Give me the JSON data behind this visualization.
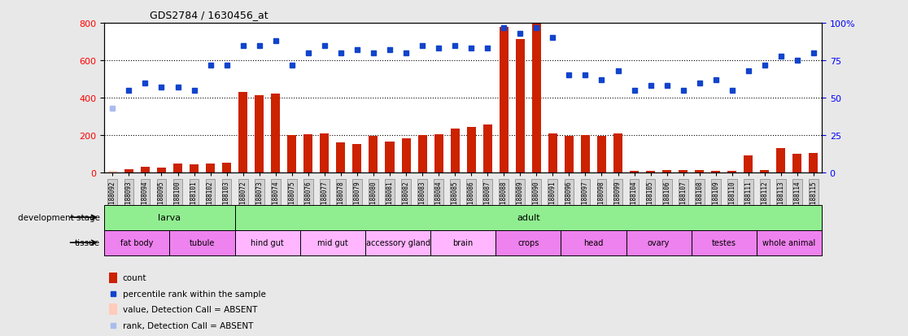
{
  "title": "GDS2784 / 1630456_at",
  "samples": [
    "GSM188092",
    "GSM188093",
    "GSM188094",
    "GSM188095",
    "GSM188100",
    "GSM188101",
    "GSM188102",
    "GSM188103",
    "GSM188072",
    "GSM188073",
    "GSM188074",
    "GSM188075",
    "GSM188076",
    "GSM188077",
    "GSM188078",
    "GSM188079",
    "GSM188080",
    "GSM188081",
    "GSM188082",
    "GSM188083",
    "GSM188084",
    "GSM188085",
    "GSM188086",
    "GSM188087",
    "GSM188088",
    "GSM188089",
    "GSM188090",
    "GSM188091",
    "GSM188096",
    "GSM188097",
    "GSM188098",
    "GSM188099",
    "GSM188104",
    "GSM188105",
    "GSM188106",
    "GSM188107",
    "GSM188108",
    "GSM188109",
    "GSM188110",
    "GSM188111",
    "GSM188112",
    "GSM188113",
    "GSM188114",
    "GSM188115"
  ],
  "counts": [
    8,
    20,
    30,
    25,
    50,
    45,
    50,
    55,
    430,
    415,
    420,
    200,
    205,
    210,
    160,
    155,
    195,
    165,
    185,
    200,
    205,
    235,
    245,
    255,
    780,
    715,
    800,
    210,
    195,
    200,
    195,
    210,
    10,
    10,
    15,
    12,
    12,
    10,
    10,
    90,
    15,
    130,
    100,
    105
  ],
  "ranks": [
    43,
    55,
    60,
    57,
    57,
    55,
    72,
    72,
    85,
    85,
    88,
    72,
    80,
    85,
    80,
    82,
    80,
    82,
    80,
    85,
    83,
    85,
    83,
    83,
    97,
    93,
    97,
    90,
    65,
    65,
    62,
    68,
    55,
    58,
    58,
    55,
    60,
    62,
    55,
    68,
    72,
    78,
    75,
    80
  ],
  "absent_count_indices": [
    0
  ],
  "absent_rank_indices": [
    0
  ],
  "ylim_left": [
    0,
    800
  ],
  "ylim_right": [
    0,
    100
  ],
  "yticks_left": [
    0,
    200,
    400,
    600,
    800
  ],
  "yticks_right": [
    0,
    25,
    50,
    75,
    100
  ],
  "dev_stage_groups": [
    {
      "label": "larva",
      "start": 0,
      "end": 8,
      "color": "#90ee90"
    },
    {
      "label": "adult",
      "start": 8,
      "end": 44,
      "color": "#90ee90"
    }
  ],
  "tissue_groups": [
    {
      "label": "fat body",
      "start": 0,
      "end": 4,
      "color": "#ee82ee"
    },
    {
      "label": "tubule",
      "start": 4,
      "end": 8,
      "color": "#ee82ee"
    },
    {
      "label": "hind gut",
      "start": 8,
      "end": 12,
      "color": "#ffb6ff"
    },
    {
      "label": "mid gut",
      "start": 12,
      "end": 16,
      "color": "#ffb6ff"
    },
    {
      "label": "accessory gland",
      "start": 16,
      "end": 20,
      "color": "#ffb6ff"
    },
    {
      "label": "brain",
      "start": 20,
      "end": 24,
      "color": "#ffb6ff"
    },
    {
      "label": "crops",
      "start": 24,
      "end": 28,
      "color": "#ee82ee"
    },
    {
      "label": "head",
      "start": 28,
      "end": 32,
      "color": "#ee82ee"
    },
    {
      "label": "ovary",
      "start": 32,
      "end": 36,
      "color": "#ee82ee"
    },
    {
      "label": "testes",
      "start": 36,
      "end": 40,
      "color": "#ee82ee"
    },
    {
      "label": "whole animal",
      "start": 40,
      "end": 44,
      "color": "#ee82ee"
    }
  ],
  "bar_color": "#cc2200",
  "rank_color": "#1144cc",
  "absent_bar_color": "#ffccbb",
  "absent_rank_color": "#aabbee",
  "bg_color": "#e8e8e8",
  "plot_bg_color": "#ffffff",
  "tick_label_bg": "#d0d0d0"
}
